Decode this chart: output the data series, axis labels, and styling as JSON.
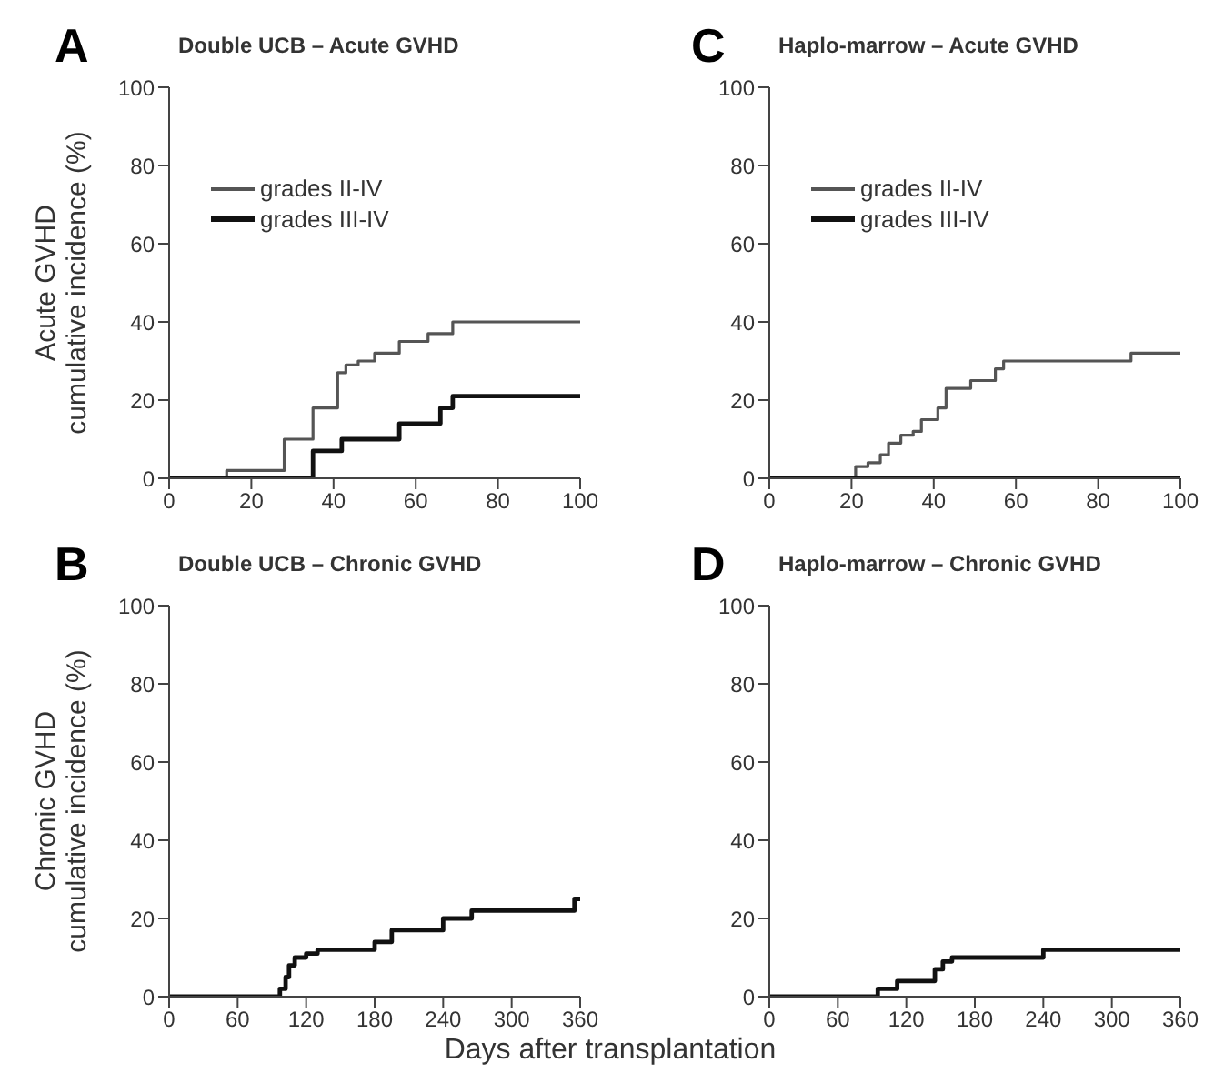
{
  "chart_data": [
    {
      "type": "step",
      "title": "Double UCB – Acute GVHD",
      "ylabel": "Acute GVHD\ncumulative incidence (%)",
      "annotations": [
        "A"
      ],
      "xlim": [
        0,
        100
      ],
      "xticks": [
        0,
        20,
        40,
        60,
        80,
        100
      ],
      "ylim": [
        0,
        100
      ],
      "yticks": [
        0,
        20,
        40,
        60,
        80,
        100
      ],
      "legend": "top left",
      "grid": false,
      "series": [
        {
          "name": "grades II-IV",
          "color": "#555555",
          "x": [
            0,
            14,
            28,
            35,
            41,
            43,
            46,
            50,
            56,
            63,
            69,
            100
          ],
          "values": [
            0,
            2,
            10,
            18,
            27,
            29,
            30,
            32,
            35,
            37,
            40,
            40
          ]
        },
        {
          "name": "grades III-IV",
          "color": "#111111",
          "x": [
            0,
            35,
            42,
            56,
            66,
            69,
            100
          ],
          "values": [
            0,
            7,
            10,
            14,
            18,
            21,
            21
          ]
        }
      ]
    },
    {
      "type": "step",
      "title": "Haplo-marrow – Acute GVHD",
      "annotations": [
        "C"
      ],
      "xlim": [
        0,
        100
      ],
      "xticks": [
        0,
        20,
        40,
        60,
        80,
        100
      ],
      "ylim": [
        0,
        100
      ],
      "yticks": [
        0,
        20,
        40,
        60,
        80,
        100
      ],
      "legend": "top left",
      "grid": false,
      "series": [
        {
          "name": "grades II-IV",
          "color": "#555555",
          "x": [
            0,
            21,
            24,
            27,
            29,
            32,
            35,
            37,
            41,
            43,
            49,
            55,
            57,
            88,
            100
          ],
          "values": [
            0,
            3,
            4,
            6,
            9,
            11,
            12,
            15,
            18,
            23,
            25,
            28,
            30,
            32,
            32
          ]
        },
        {
          "name": "grades III-IV",
          "color": "#111111",
          "x": [
            0,
            100
          ],
          "values": [
            0,
            0
          ]
        }
      ]
    },
    {
      "type": "step",
      "title": "Double UCB – Chronic GVHD",
      "ylabel": "Chronic GVHD\ncumulative incidence (%)",
      "xlabel": "Days after transplantation",
      "annotations": [
        "B"
      ],
      "xlim": [
        0,
        360
      ],
      "xticks": [
        0,
        60,
        120,
        180,
        240,
        300,
        360
      ],
      "ylim": [
        0,
        100
      ],
      "yticks": [
        0,
        20,
        40,
        60,
        80,
        100
      ],
      "grid": false,
      "series": [
        {
          "color": "#111111",
          "x": [
            0,
            97,
            102,
            105,
            110,
            120,
            130,
            180,
            195,
            240,
            265,
            355,
            360
          ],
          "values": [
            0,
            2,
            5,
            8,
            10,
            11,
            12,
            14,
            17,
            20,
            22,
            25,
            25
          ]
        }
      ]
    },
    {
      "type": "step",
      "title": "Haplo-marrow – Chronic GVHD",
      "annotations": [
        "D"
      ],
      "xlim": [
        0,
        360
      ],
      "xticks": [
        0,
        60,
        120,
        180,
        240,
        300,
        360
      ],
      "ylim": [
        0,
        100
      ],
      "yticks": [
        0,
        20,
        40,
        60,
        80,
        100
      ],
      "grid": false,
      "series": [
        {
          "color": "#111111",
          "x": [
            0,
            95,
            112,
            145,
            152,
            160,
            240,
            360
          ],
          "values": [
            0,
            2,
            4,
            7,
            9,
            10,
            12,
            12
          ]
        }
      ]
    }
  ]
}
